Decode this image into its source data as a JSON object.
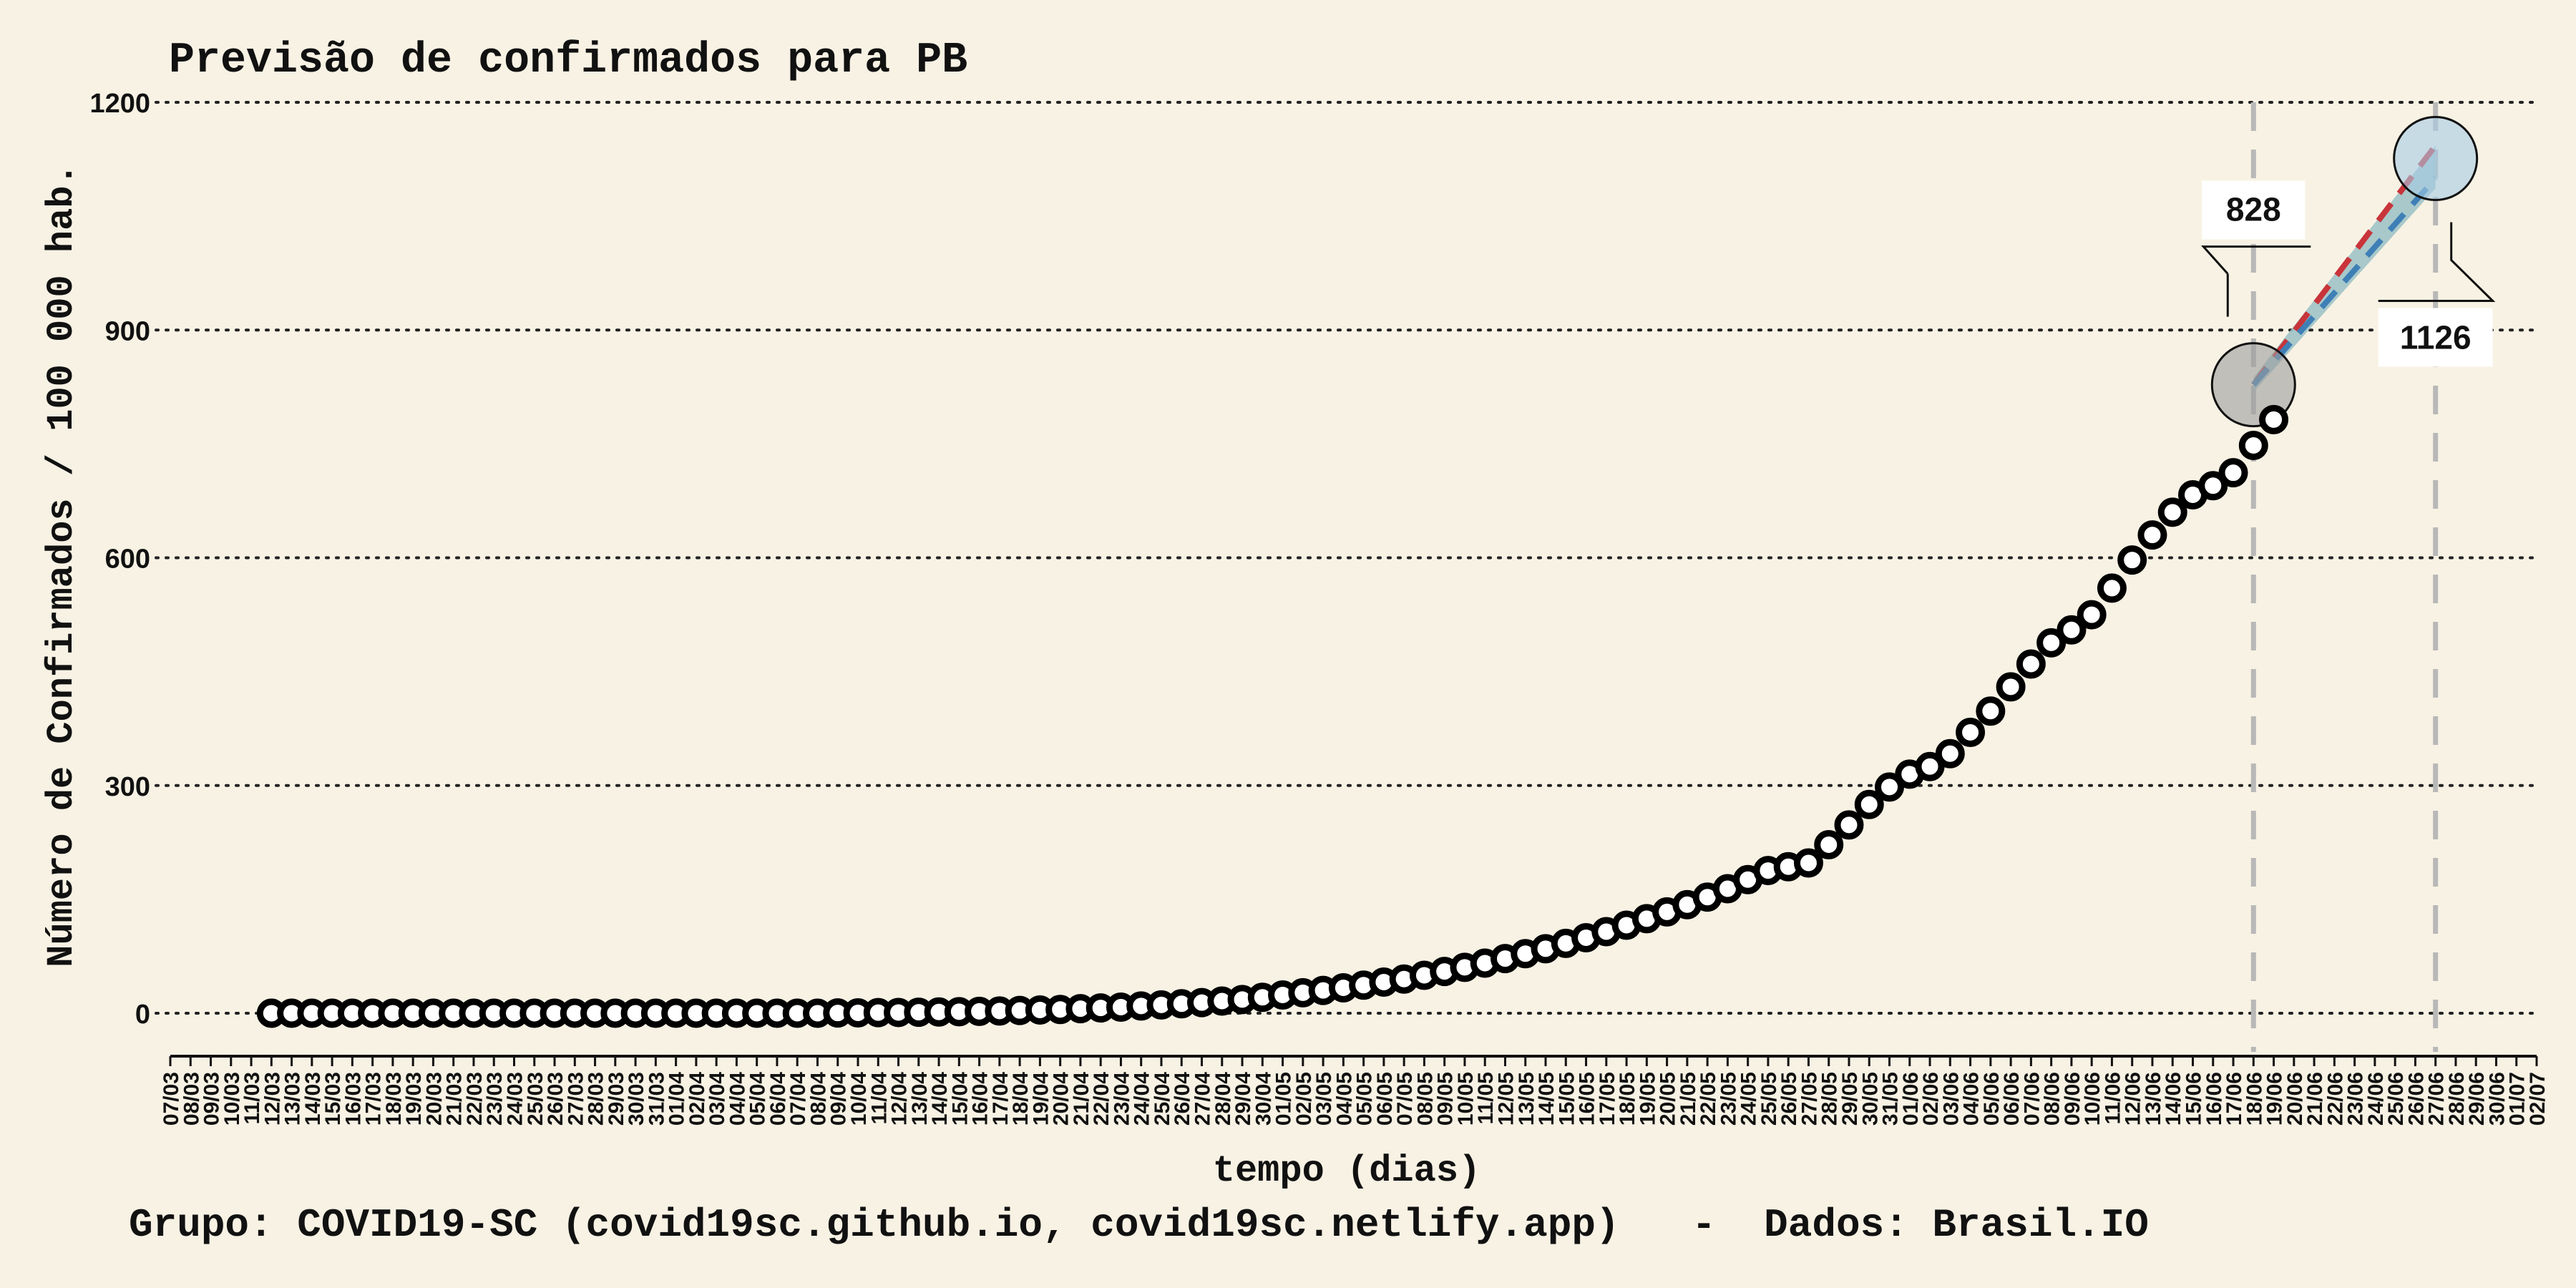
{
  "chart_data": {
    "type": "scatter",
    "title": "Previsão de confirmados para PB",
    "xlabel": "tempo (dias)",
    "ylabel": "Número de Confirmados / 100 000 hab.",
    "caption": "Grupo: COVID19-SC (covid19sc.github.io, covid19sc.netlify.app)   -  Dados: Brasil.IO",
    "ylim": [
      -55,
      1200
    ],
    "yticks": [
      0,
      300,
      600,
      900,
      1200
    ],
    "grid": "horizontal dotted",
    "x_start": "07/03",
    "x_ticks": [
      "07/03",
      "08/03",
      "09/03",
      "10/03",
      "11/03",
      "12/03",
      "13/03",
      "14/03",
      "15/03",
      "16/03",
      "17/03",
      "18/03",
      "19/03",
      "20/03",
      "21/03",
      "22/03",
      "23/03",
      "24/03",
      "25/03",
      "26/03",
      "27/03",
      "28/03",
      "29/03",
      "30/03",
      "31/03",
      "01/04",
      "02/04",
      "03/04",
      "04/04",
      "05/04",
      "06/04",
      "07/04",
      "08/04",
      "09/04",
      "10/04",
      "11/04",
      "12/04",
      "13/04",
      "14/04",
      "15/04",
      "16/04",
      "17/04",
      "18/04",
      "19/04",
      "20/04",
      "21/04",
      "22/04",
      "23/04",
      "24/04",
      "25/04",
      "26/04",
      "27/04",
      "28/04",
      "29/04",
      "30/04",
      "01/05",
      "02/05",
      "03/05",
      "04/05",
      "05/05",
      "06/05",
      "07/05",
      "08/05",
      "09/05",
      "10/05",
      "11/05",
      "12/05",
      "13/05",
      "14/05",
      "15/05",
      "16/05",
      "17/05",
      "18/05",
      "19/05",
      "20/05",
      "21/05",
      "22/05",
      "23/05",
      "24/05",
      "25/05",
      "26/05",
      "27/05",
      "28/05",
      "29/05",
      "30/05",
      "31/05",
      "01/06",
      "02/06",
      "03/06",
      "04/06",
      "05/06",
      "06/06",
      "07/06",
      "08/06",
      "09/06",
      "10/06",
      "11/06",
      "12/06",
      "13/06",
      "14/06",
      "15/06",
      "16/06",
      "17/06",
      "18/06",
      "19/06",
      "20/06",
      "21/06",
      "22/06",
      "23/06",
      "24/06",
      "25/06",
      "26/06",
      "27/06",
      "28/06",
      "29/06",
      "30/06",
      "01/07",
      "02/07"
    ],
    "series": [
      {
        "kind": "observed",
        "x_first": "12/03",
        "values": [
          0,
          0,
          0,
          0,
          0,
          0,
          0,
          0,
          0,
          0,
          0,
          0,
          0,
          0,
          0,
          0,
          0,
          0,
          0,
          0,
          0,
          0,
          0,
          0,
          0,
          0,
          0,
          0,
          0.3,
          0.5,
          0.8,
          1,
          1.3,
          1.6,
          2,
          2.5,
          3,
          3.6,
          4.3,
          5,
          6,
          7,
          8,
          9.5,
          11,
          12.5,
          14,
          16,
          18,
          21,
          24,
          27,
          30,
          33.5,
          37,
          41,
          45,
          50,
          55,
          60.5,
          66,
          72,
          78.5,
          85,
          92,
          99.5,
          107.5,
          116,
          124.5,
          133.5,
          143,
          153,
          164,
          176,
          188,
          193,
          198,
          222,
          248,
          275,
          298,
          315,
          325,
          342,
          370,
          398,
          430,
          460,
          488,
          505,
          525,
          560,
          597,
          630,
          660,
          683,
          695,
          712,
          748,
          782
        ]
      },
      {
        "kind": "forecast-red",
        "color": "#c8343a",
        "points": [
          [
            "18/06",
            828
          ],
          [
            "27/06",
            1143
          ]
        ]
      },
      {
        "kind": "forecast-blue",
        "color": "#3e7fb6",
        "points": [
          [
            "18/06",
            828
          ],
          [
            "27/06",
            1100
          ]
        ]
      }
    ],
    "annotations": [
      {
        "x": "18/06",
        "y": 828,
        "label": "828",
        "circle": "#9c9c9c"
      },
      {
        "x": "27/06",
        "y": 1126,
        "label": "1126",
        "circle": "#a6cbe4"
      }
    ],
    "vlines": [
      "18/06",
      "27/06"
    ]
  }
}
